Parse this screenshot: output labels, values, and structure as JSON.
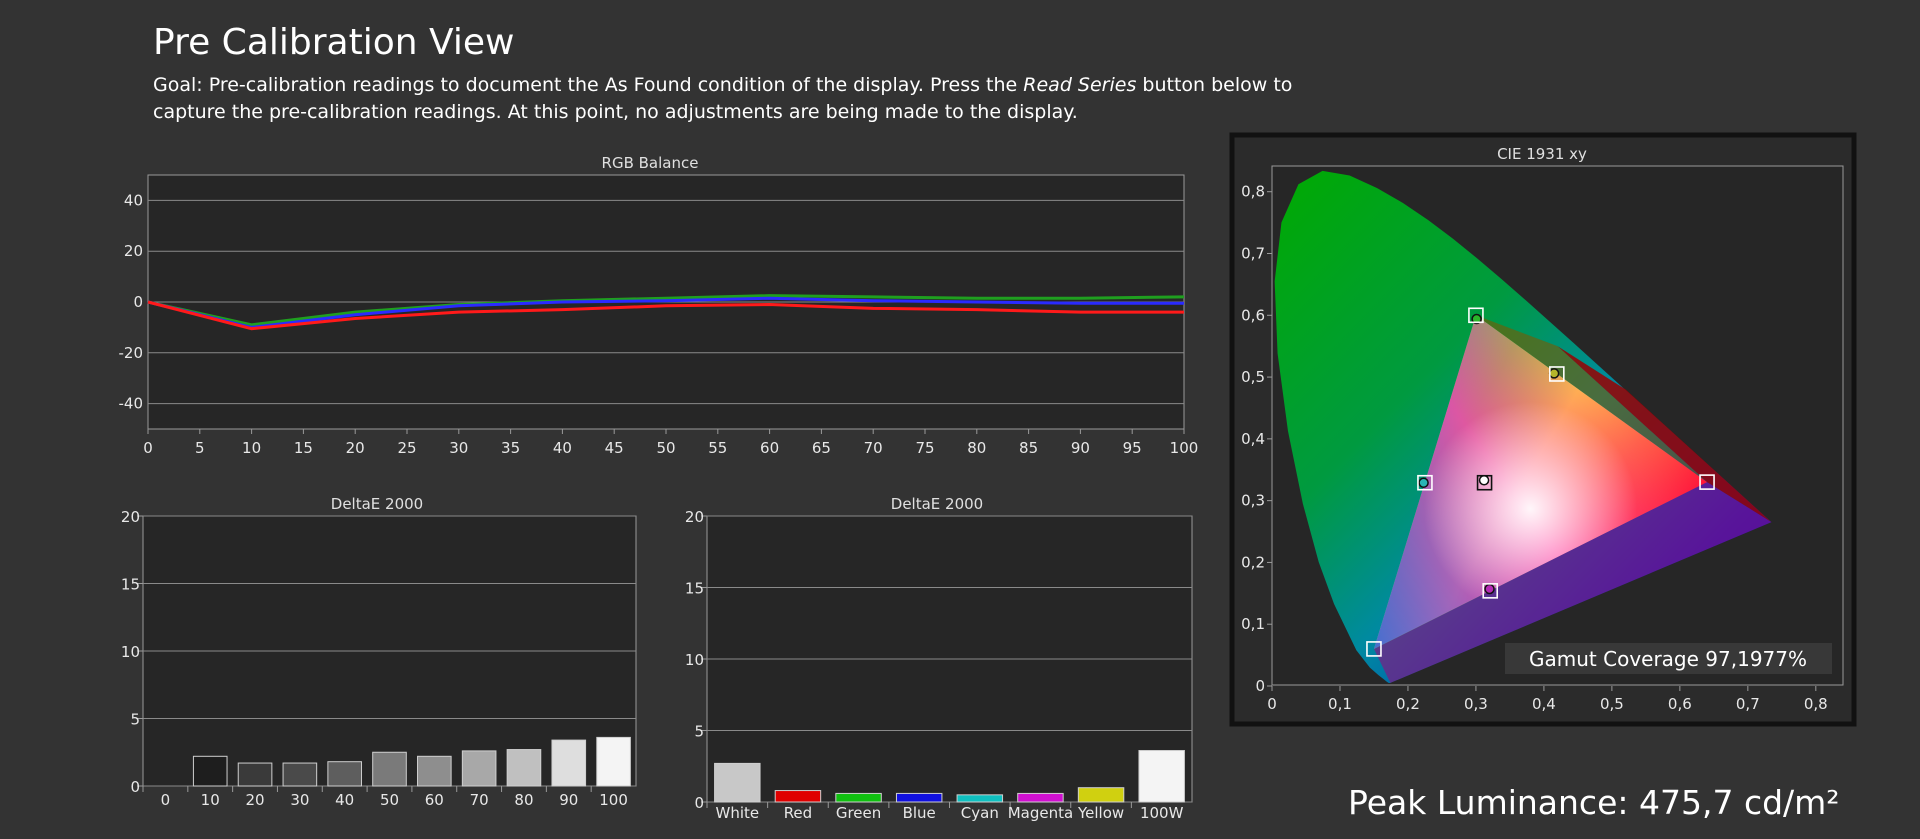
{
  "page": {
    "title": "Pre Calibration View",
    "goal_text_1": "Goal: Pre-calibration readings to document the As Found condition of the display. Press the ",
    "goal_emphasis": "Read Series",
    "goal_text_2": " button below to capture the pre-calibration readings. At this point, no adjustments are being made to the display.",
    "peak_luminance": "Peak Luminance: 475,7 cd/m²"
  },
  "colors": {
    "background": "#333333",
    "plot_bg": "#262626",
    "grid": "#8a8a8a",
    "red": "#ff1a1a",
    "green": "#1f9f1f",
    "blue": "#2a2aff"
  },
  "chart_data": [
    {
      "id": "rgb-balance",
      "type": "line",
      "title": "RGB Balance",
      "x": [
        0,
        10,
        20,
        30,
        40,
        50,
        60,
        70,
        80,
        90,
        100
      ],
      "xticks": [
        0,
        5,
        10,
        15,
        20,
        25,
        30,
        35,
        40,
        45,
        50,
        55,
        60,
        65,
        70,
        75,
        80,
        85,
        90,
        95,
        100
      ],
      "yticks": [
        40,
        20,
        0,
        -20,
        -40
      ],
      "xlim": [
        0,
        100
      ],
      "ylim": [
        -50,
        50
      ],
      "grid": true,
      "series": [
        {
          "color": "#1f9f1f",
          "values": [
            0,
            -9,
            -4,
            -1,
            0.5,
            1.5,
            2.5,
            2,
            1.5,
            1.5,
            2
          ]
        },
        {
          "color": "#2a2aff",
          "values": [
            0,
            -10,
            -5,
            -1.5,
            0,
            0.5,
            1.5,
            0.5,
            0,
            -0.5,
            -0.5
          ]
        },
        {
          "color": "#ff1a1a",
          "values": [
            0,
            -10.5,
            -6.5,
            -4,
            -3,
            -1.5,
            -1,
            -2.5,
            -3,
            -4,
            -4
          ]
        }
      ]
    },
    {
      "id": "deltae-grayscale",
      "type": "bar",
      "title": "DeltaE 2000",
      "categories": [
        "0",
        "10",
        "20",
        "30",
        "40",
        "50",
        "60",
        "70",
        "80",
        "90",
        "100"
      ],
      "values": [
        0,
        2.2,
        1.7,
        1.7,
        1.8,
        2.5,
        2.2,
        2.6,
        2.7,
        3.4,
        3.6
      ],
      "bar_colors": [
        "#000000",
        "#1e1e1e",
        "#3a3a3a",
        "#4a4a4a",
        "#5e5e5e",
        "#7a7a7a",
        "#8e8e8e",
        "#a8a8a8",
        "#c0c0c0",
        "#dedede",
        "#f4f4f4"
      ],
      "yticks": [
        20,
        15,
        10,
        5,
        0
      ],
      "ylim": [
        0,
        20
      ],
      "grid": true
    },
    {
      "id": "deltae-colors",
      "type": "bar",
      "title": "DeltaE 2000",
      "categories": [
        "White",
        "Red",
        "Green",
        "Blue",
        "Cyan",
        "Magenta",
        "Yellow",
        "100W"
      ],
      "values": [
        2.7,
        0.8,
        0.6,
        0.6,
        0.5,
        0.6,
        1.0,
        3.6
      ],
      "bar_colors": [
        "#c8c8c8",
        "#e00000",
        "#10c010",
        "#1010e0",
        "#10c0c0",
        "#d010d0",
        "#d0d010",
        "#f4f4f4"
      ],
      "yticks": [
        20,
        15,
        10,
        5,
        0
      ],
      "ylim": [
        0,
        20
      ],
      "grid": true
    },
    {
      "id": "cie-1931",
      "type": "scatter",
      "title": "CIE 1931 xy",
      "xticks": [
        "0",
        "0,1",
        "0,2",
        "0,3",
        "0,4",
        "0,5",
        "0,6",
        "0,7",
        "0,8"
      ],
      "yticks": [
        "0,8",
        "0,7",
        "0,6",
        "0,5",
        "0,4",
        "0,3",
        "0,2",
        "0,1",
        "0"
      ],
      "xlim": [
        0,
        0.84
      ],
      "ylim": [
        0,
        0.84
      ],
      "targets": [
        {
          "name": "red",
          "x": 0.64,
          "y": 0.33
        },
        {
          "name": "green",
          "x": 0.3,
          "y": 0.6
        },
        {
          "name": "blue",
          "x": 0.15,
          "y": 0.06
        },
        {
          "name": "cyan",
          "x": 0.225,
          "y": 0.329
        },
        {
          "name": "magenta",
          "x": 0.321,
          "y": 0.154
        },
        {
          "name": "yellow",
          "x": 0.419,
          "y": 0.505
        },
        {
          "name": "white",
          "x": 0.3127,
          "y": 0.329
        }
      ],
      "measured": [
        {
          "name": "green",
          "x": 0.301,
          "y": 0.594,
          "color": "#2ab52a"
        },
        {
          "name": "yellow",
          "x": 0.415,
          "y": 0.506,
          "color": "#b5b52a"
        },
        {
          "name": "cyan",
          "x": 0.223,
          "y": 0.329,
          "color": "#2ab5b5"
        },
        {
          "name": "magenta",
          "x": 0.32,
          "y": 0.157,
          "color": "#b52ab5"
        },
        {
          "name": "white",
          "x": 0.312,
          "y": 0.333,
          "color": "#ffffff"
        }
      ],
      "gamut_coverage": "Gamut Coverage 97,1977%"
    }
  ]
}
